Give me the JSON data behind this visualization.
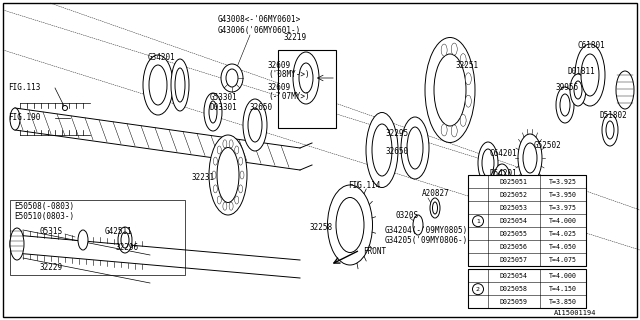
{
  "bg_color": "#ffffff",
  "diagram_id": "A115001194",
  "table_rows": [
    {
      "part": "D025051",
      "thickness": "T=3.925",
      "marker": ""
    },
    {
      "part": "D025052",
      "thickness": "T=3.950",
      "marker": ""
    },
    {
      "part": "D025053",
      "thickness": "T=3.975",
      "marker": ""
    },
    {
      "part": "D025054",
      "thickness": "T=4.000",
      "marker": "1"
    },
    {
      "part": "D025055",
      "thickness": "T=4.025",
      "marker": ""
    },
    {
      "part": "D025056",
      "thickness": "T=4.050",
      "marker": ""
    },
    {
      "part": "D025057",
      "thickness": "T=4.075",
      "marker": ""
    },
    {
      "part": "D025054",
      "thickness": "T=4.000",
      "marker": ""
    },
    {
      "part": "D025058",
      "thickness": "T=4.150",
      "marker": "2"
    },
    {
      "part": "D025059",
      "thickness": "T=3.850",
      "marker": ""
    }
  ],
  "lw": 0.7,
  "font_size": 5.5
}
